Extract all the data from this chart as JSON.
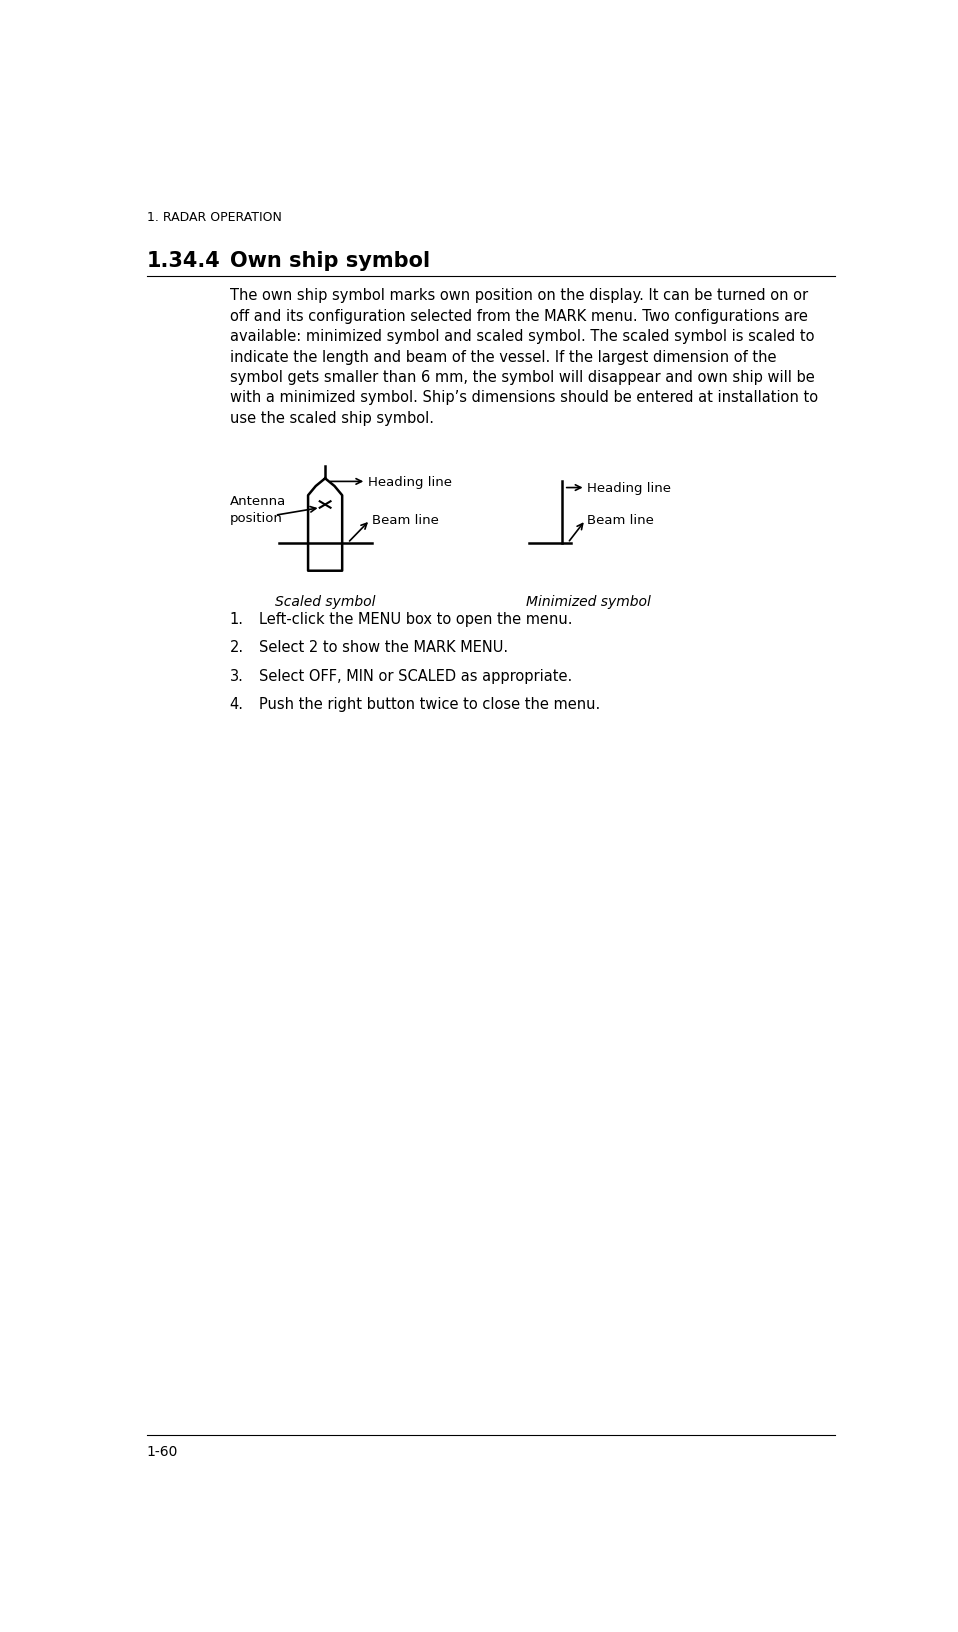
{
  "header": "1. RADAR OPERATION",
  "section": "1.34.4",
  "section_title": "Own ship symbol",
  "body_lines": [
    "The own ship symbol marks own position on the display. It can be turned on or",
    "off and its configuration selected from the MARK menu. Two configurations are",
    "available: minimized symbol and scaled symbol. The scaled symbol is scaled to",
    "indicate the length and beam of the vessel. If the largest dimension of the",
    "symbol gets smaller than 6 mm, the symbol will disappear and own ship will be",
    "with a minimized symbol. Ship’s dimensions should be entered at installation to",
    "use the scaled ship symbol."
  ],
  "list_items": [
    "Left-click the MENU box to open the menu.",
    "Select 2 to show the MARK MENU.",
    "Select OFF, MIN or SCALED as appropriate.",
    "Push the right button twice to close the menu."
  ],
  "footer": "1-60",
  "bg_color": "#ffffff",
  "text_color": "#000000",
  "diagram_scaled_label": "Scaled symbol",
  "diagram_minimized_label": "Minimized symbol",
  "heading_line_label": "Heading line",
  "beam_line_label": "Beam line"
}
